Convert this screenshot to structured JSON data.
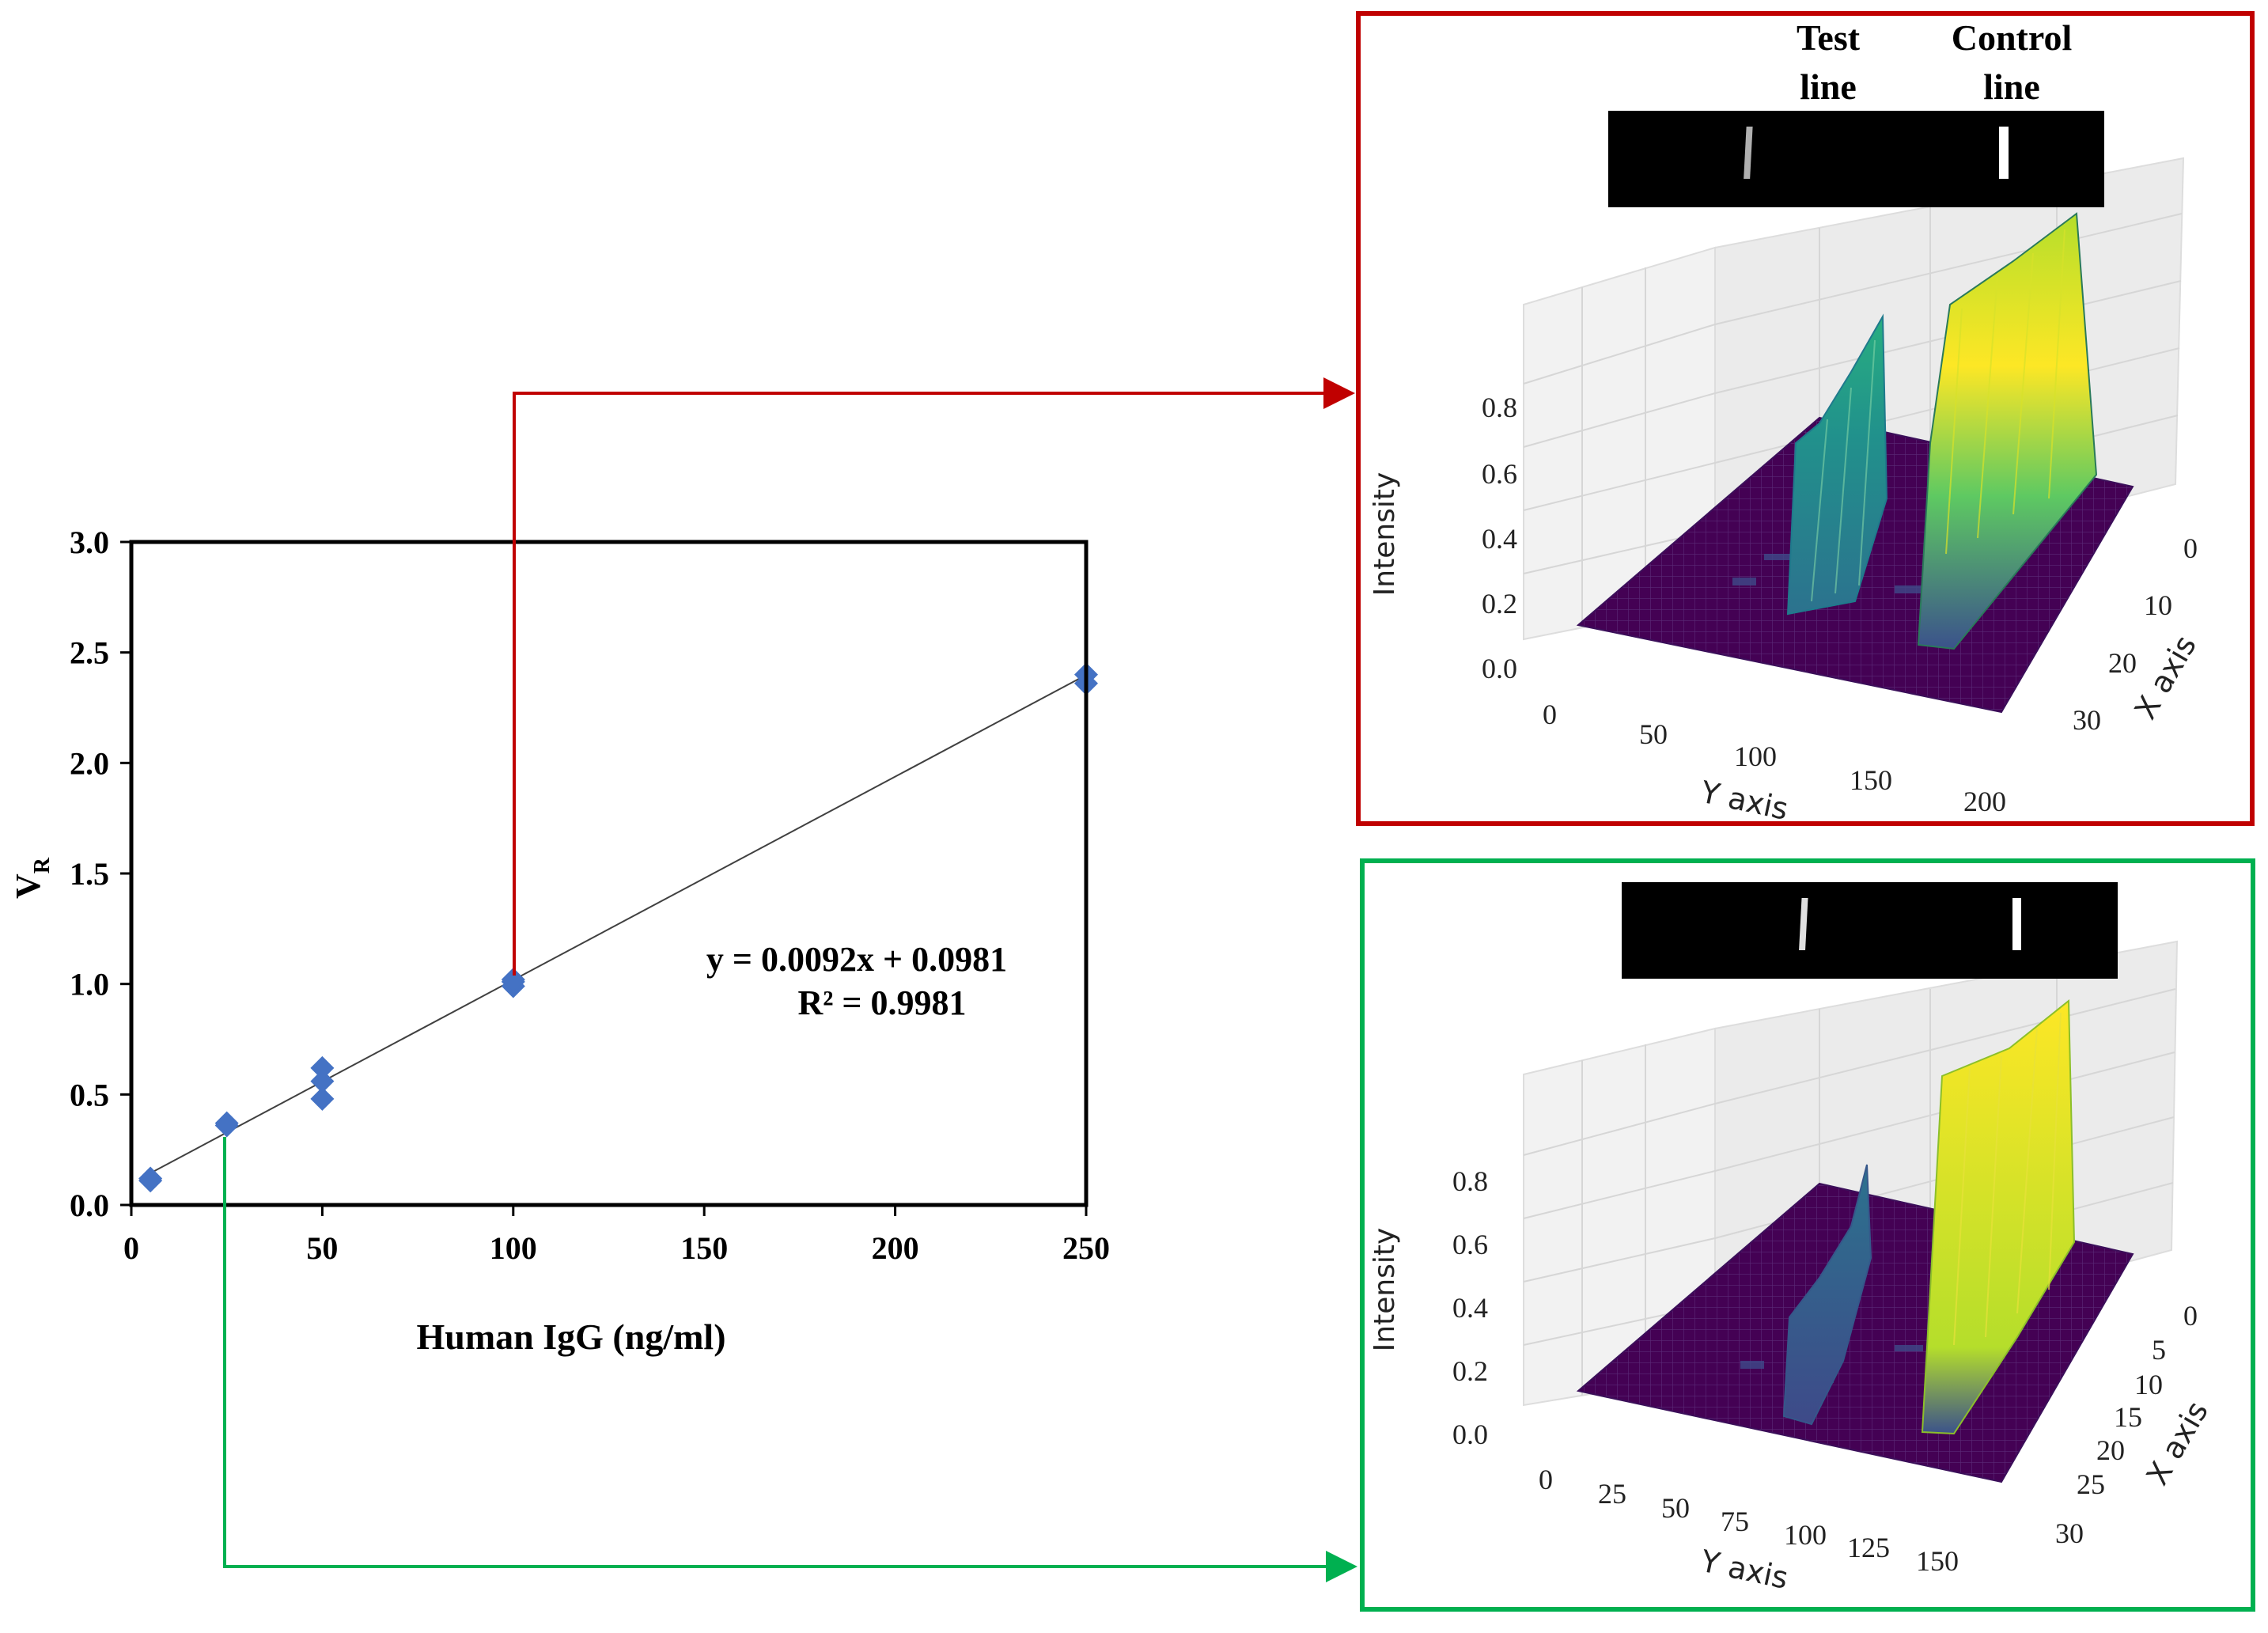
{
  "chart_data": [
    {
      "type": "scatter",
      "title": "",
      "xlabel": "Human IgG (ng/ml)",
      "ylabel": "V",
      "ylabel_sub": "R",
      "xlim": [
        0,
        250
      ],
      "ylim": [
        0,
        3.0
      ],
      "xticks": [
        "0",
        "50",
        "100",
        "150",
        "200",
        "250"
      ],
      "xtick_values": [
        0,
        50,
        100,
        150,
        200,
        250
      ],
      "yticks": [
        "0.0",
        "0.5",
        "1.0",
        "1.5",
        "2.0",
        "2.5",
        "3.0"
      ],
      "ytick_values": [
        0,
        0.5,
        1.0,
        1.5,
        2.0,
        2.5,
        3.0
      ],
      "points": [
        {
          "x": 5,
          "y": 0.11
        },
        {
          "x": 5,
          "y": 0.12
        },
        {
          "x": 25,
          "y": 0.36
        },
        {
          "x": 25,
          "y": 0.37
        },
        {
          "x": 50,
          "y": 0.48
        },
        {
          "x": 50,
          "y": 0.56
        },
        {
          "x": 50,
          "y": 0.62
        },
        {
          "x": 100,
          "y": 0.99
        },
        {
          "x": 100,
          "y": 1.01
        },
        {
          "x": 100,
          "y": 1.02
        },
        {
          "x": 250,
          "y": 2.36
        },
        {
          "x": 250,
          "y": 2.4
        }
      ],
      "trendline": {
        "slope": 0.0092,
        "intercept": 0.0981,
        "x_range": [
          5,
          250
        ]
      },
      "equation": "y = 0.0092x + 0.0981",
      "r_squared": "R² = 0.9981",
      "marker_color": "#4472c4"
    },
    {
      "type": "surface3d",
      "frame_color": "#c00000",
      "linked_x": 100,
      "zlabel": "Intensity",
      "xlabel": "X axis",
      "ylabel": "Y axis",
      "zticks": [
        "0.0",
        "0.2",
        "0.4",
        "0.6",
        "0.8"
      ],
      "yticks": [
        "0",
        "50",
        "100",
        "150",
        "200"
      ],
      "xticks": [
        "0",
        "10",
        "20",
        "30"
      ],
      "strip_labels": {
        "test": [
          "Test",
          "line"
        ],
        "control": [
          "Control",
          "line"
        ]
      },
      "peaks": [
        {
          "name": "test line",
          "max_intensity": 0.62
        },
        {
          "name": "control line",
          "max_intensity": 1.0
        }
      ]
    },
    {
      "type": "surface3d",
      "frame_color": "#00b050",
      "linked_x": 25,
      "zlabel": "Intensity",
      "xlabel": "X axis",
      "ylabel": "Y axis",
      "zticks": [
        "0.0",
        "0.2",
        "0.4",
        "0.6",
        "0.8"
      ],
      "yticks": [
        "0",
        "25",
        "50",
        "75",
        "100",
        "125",
        "150"
      ],
      "xticks": [
        "0",
        "5",
        "10",
        "15",
        "20",
        "25",
        "30"
      ],
      "peaks": [
        {
          "name": "test line",
          "max_intensity": 0.42
        },
        {
          "name": "control line",
          "max_intensity": 0.95
        }
      ]
    }
  ],
  "colors": {
    "red_link": "#c00000",
    "green_link": "#00b050",
    "viridis_purple": "#440154",
    "viridis_teal": "#21918c",
    "viridis_yellow": "#fde725"
  }
}
